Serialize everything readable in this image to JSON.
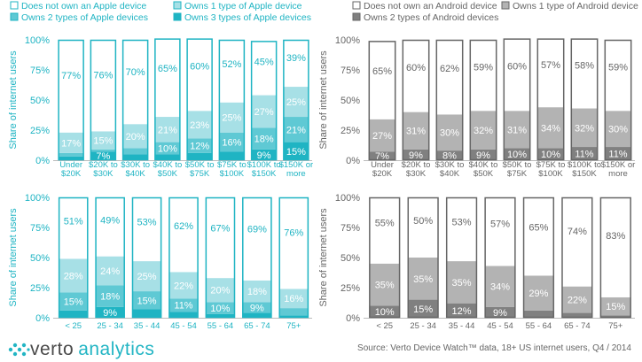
{
  "logo": {
    "word1": "verto",
    "word2": "analytics"
  },
  "source": "Source: Verto Device Watch™ data, 18+ US internet users, Q4 / 2014",
  "chart_data": [
    {
      "type": "bar",
      "stacked": true,
      "ylabel": "Share of internet users",
      "ylim": [
        0,
        100
      ],
      "yticks": [
        "0%",
        "25%",
        "50%",
        "75%",
        "100%"
      ],
      "categories": [
        "Under\n$20K",
        "$20K to\n$30K",
        "$30K to\n$40K",
        "$40K to\n$50K",
        "$50K to\n$75K",
        "$75K to\n$100K",
        "$100K to\n$150K",
        "$150K or\nmore"
      ],
      "series": [
        {
          "name": "Owns 3 types of Apple devices",
          "color": "#1fb4c3",
          "values": [
            3,
            7,
            5,
            5,
            6,
            7,
            9,
            15
          ],
          "labels": [
            "",
            "7%",
            "",
            "",
            "",
            "",
            "9%",
            "15%"
          ]
        },
        {
          "name": "Owns 2 types of Apple devices",
          "color": "#5fc9d4",
          "values": [
            3,
            2,
            5,
            10,
            12,
            16,
            18,
            21
          ],
          "labels": [
            "",
            "",
            "",
            "10%",
            "12%",
            "16%",
            "18%",
            "21%"
          ]
        },
        {
          "name": "Owns 1 type of Apple device",
          "color": "#a7e0e6",
          "values": [
            17,
            15,
            20,
            21,
            23,
            25,
            27,
            25
          ],
          "labels": [
            "17%",
            "15%",
            "20%",
            "21%",
            "23%",
            "25%",
            "27%",
            "25%"
          ]
        },
        {
          "name": "Does not own an Apple device",
          "color": "#ffffff",
          "values": [
            77,
            76,
            70,
            65,
            60,
            52,
            45,
            39
          ],
          "labels": [
            "77%",
            "76%",
            "70%",
            "65%",
            "60%",
            "52%",
            "45%",
            "39%"
          ]
        }
      ],
      "legend": "top",
      "accent": "#1fb4c3"
    },
    {
      "type": "bar",
      "stacked": true,
      "ylabel": "Share of internet users",
      "ylim": [
        0,
        100
      ],
      "yticks": [
        "0%",
        "25%",
        "50%",
        "75%",
        "100%"
      ],
      "categories": [
        "Under\n$20K",
        "$20K to\n$30K",
        "$30K to\n$40K",
        "$40K to\n$50K",
        "$50K to\n$75K",
        "$75K to\n$100K",
        "$100K to\n$150K",
        "$150K or\nmore"
      ],
      "series": [
        {
          "name": "Owns 2 types of Android devices",
          "color": "#808080",
          "values": [
            7,
            9,
            8,
            9,
            10,
            10,
            11,
            11
          ],
          "labels": [
            "7%",
            "9%",
            "8%",
            "9%",
            "10%",
            "10%",
            "11%",
            "11%"
          ]
        },
        {
          "name": "Owns 1 type of Android device",
          "color": "#b3b3b3",
          "values": [
            27,
            31,
            30,
            32,
            31,
            34,
            32,
            30
          ],
          "labels": [
            "27%",
            "31%",
            "30%",
            "32%",
            "31%",
            "34%",
            "32%",
            "30%"
          ]
        },
        {
          "name": "Does not own an Android device",
          "color": "#ffffff",
          "values": [
            65,
            60,
            62,
            59,
            60,
            57,
            58,
            59
          ],
          "labels": [
            "65%",
            "60%",
            "62%",
            "59%",
            "60%",
            "57%",
            "58%",
            "59%"
          ]
        }
      ],
      "legend": "top",
      "accent": "#666666"
    },
    {
      "type": "bar",
      "stacked": true,
      "ylabel": "Share of internet users",
      "ylim": [
        0,
        100
      ],
      "yticks": [
        "0%",
        "25%",
        "50%",
        "75%",
        "100%"
      ],
      "categories": [
        "< 25",
        "25 - 34",
        "35 - 44",
        "45 - 54",
        "55 - 64",
        "65 - 74",
        "75+"
      ],
      "series": [
        {
          "name": "Owns 3 types of Apple devices",
          "color": "#1fb4c3",
          "values": [
            6,
            9,
            7,
            5,
            3,
            4,
            2
          ],
          "labels": [
            "",
            "9%",
            "",
            "",
            "",
            "",
            ""
          ]
        },
        {
          "name": "Owns 2 types of Apple devices",
          "color": "#5fc9d4",
          "values": [
            15,
            18,
            15,
            11,
            10,
            9,
            6
          ],
          "labels": [
            "15%",
            "18%",
            "15%",
            "11%",
            "10%",
            "9%",
            ""
          ]
        },
        {
          "name": "Owns 1 type of Apple device",
          "color": "#a7e0e6",
          "values": [
            28,
            24,
            25,
            22,
            20,
            18,
            16
          ],
          "labels": [
            "28%",
            "24%",
            "25%",
            "22%",
            "20%",
            "18%",
            "16%"
          ]
        },
        {
          "name": "Does not own an Apple device",
          "color": "#ffffff",
          "values": [
            51,
            49,
            53,
            62,
            67,
            69,
            76
          ],
          "labels": [
            "51%",
            "49%",
            "53%",
            "62%",
            "67%",
            "69%",
            "76%"
          ]
        }
      ],
      "accent": "#1fb4c3"
    },
    {
      "type": "bar",
      "stacked": true,
      "ylabel": "Share of internet users",
      "ylim": [
        0,
        100
      ],
      "yticks": [
        "0%",
        "25%",
        "50%",
        "75%",
        "100%"
      ],
      "categories": [
        "< 25",
        "25 - 34",
        "35 - 44",
        "45 - 54",
        "55 - 64",
        "65 - 74",
        "75+"
      ],
      "series": [
        {
          "name": "Owns 2 types of Android devices",
          "color": "#808080",
          "values": [
            10,
            15,
            12,
            9,
            6,
            4,
            2
          ],
          "labels": [
            "10%",
            "15%",
            "12%",
            "9%",
            "",
            "",
            ""
          ]
        },
        {
          "name": "Owns 1 type of Android device",
          "color": "#b3b3b3",
          "values": [
            35,
            35,
            35,
            34,
            29,
            22,
            15
          ],
          "labels": [
            "35%",
            "35%",
            "35%",
            "34%",
            "29%",
            "22%",
            "15%"
          ]
        },
        {
          "name": "Does not own an Android device",
          "color": "#ffffff",
          "values": [
            55,
            50,
            53,
            57,
            65,
            74,
            83
          ],
          "labels": [
            "55%",
            "50%",
            "53%",
            "57%",
            "65%",
            "74%",
            "83%"
          ]
        }
      ],
      "accent": "#666666"
    }
  ]
}
